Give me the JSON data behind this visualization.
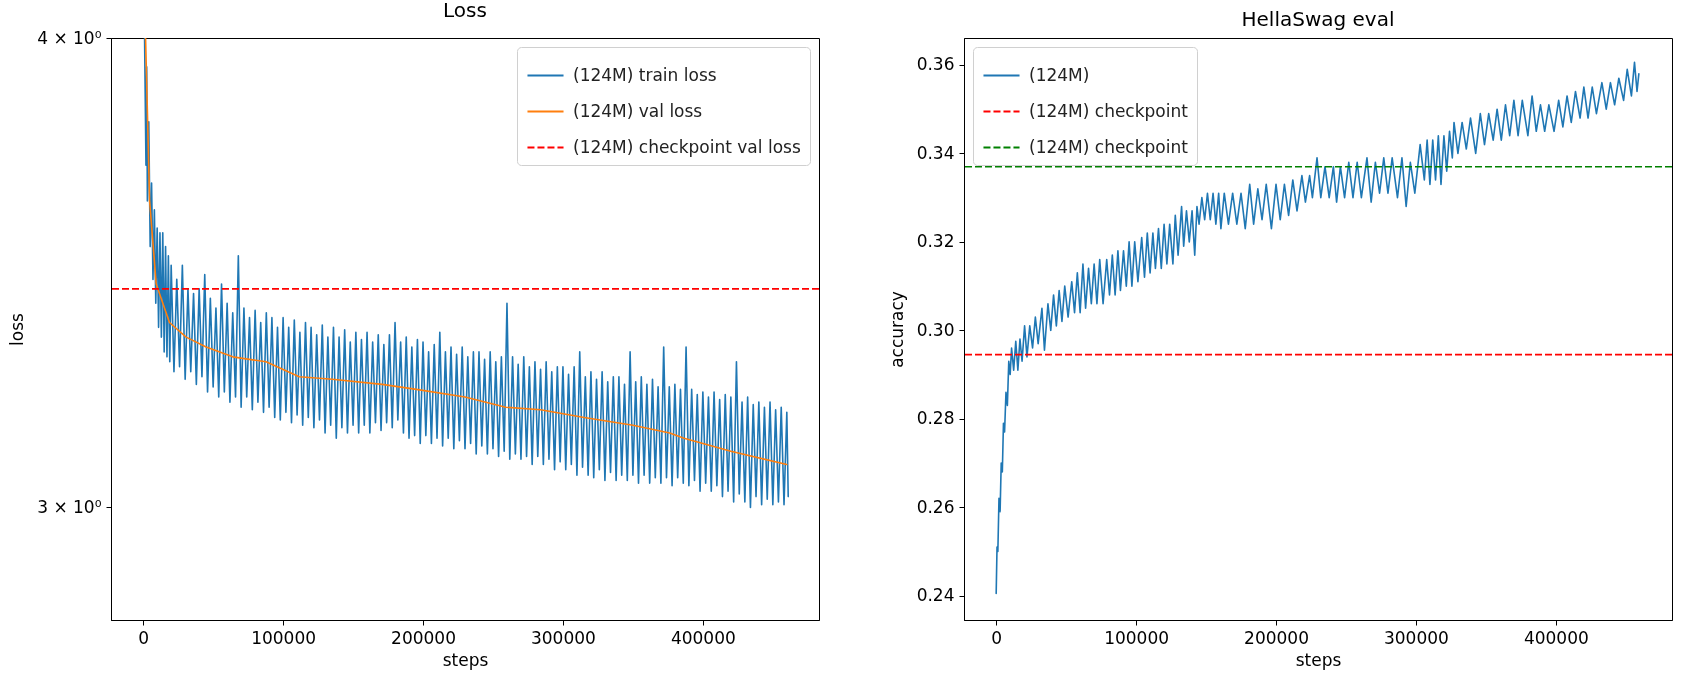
{
  "chart_data": [
    {
      "type": "line",
      "title": "Loss",
      "xlabel": "steps",
      "ylabel": "loss",
      "log": true,
      "legend": "top right",
      "xlim": [
        -23000,
        483000
      ],
      "xticks": [
        0,
        100000,
        200000,
        300000,
        400000
      ],
      "ylim": [
        2.8,
        4.0
      ],
      "yticks": [
        {
          "value": 3,
          "label": "3 × 10⁰"
        },
        {
          "value": 4,
          "label": "4 × 10⁰"
        }
      ],
      "series": [
        {
          "name": "(124M) train loss",
          "color": "#1f77b4",
          "line_style": "solid",
          "x": [
            1000,
            2000,
            2500,
            3000,
            4000,
            5000,
            6000,
            7000,
            8000,
            9000,
            10000,
            11000,
            12000,
            13000,
            14000,
            15000,
            16000,
            17000,
            18000,
            19000,
            20000,
            22000,
            24000,
            26000,
            28000,
            30000,
            32000,
            34000,
            36000,
            38000,
            40000,
            42000,
            44000,
            46000,
            48000,
            50000,
            52000,
            54000,
            56000,
            58000,
            60000,
            62000,
            64000,
            66000,
            68000,
            70000,
            72000,
            74000,
            76000,
            78000,
            80000,
            82000,
            84000,
            86000,
            88000,
            90000,
            92000,
            94000,
            96000,
            98000,
            100000,
            102000,
            104000,
            106000,
            108000,
            110000,
            112000,
            114000,
            116000,
            118000,
            120000,
            122000,
            124000,
            126000,
            128000,
            130000,
            132000,
            134000,
            136000,
            138000,
            140000,
            142000,
            144000,
            146000,
            148000,
            150000,
            152000,
            154000,
            156000,
            158000,
            160000,
            162000,
            164000,
            166000,
            168000,
            170000,
            172000,
            174000,
            176000,
            178000,
            180000,
            182000,
            184000,
            186000,
            188000,
            190000,
            192000,
            194000,
            196000,
            198000,
            200000,
            202000,
            204000,
            206000,
            208000,
            210000,
            212000,
            214000,
            216000,
            218000,
            220000,
            222000,
            224000,
            226000,
            228000,
            230000,
            232000,
            234000,
            236000,
            238000,
            240000,
            242000,
            244000,
            246000,
            248000,
            250000,
            252000,
            254000,
            256000,
            258000,
            260000,
            262000,
            264000,
            266000,
            268000,
            270000,
            272000,
            274000,
            276000,
            278000,
            280000,
            282000,
            284000,
            286000,
            288000,
            290000,
            292000,
            294000,
            296000,
            298000,
            300000,
            302000,
            304000,
            306000,
            308000,
            310000,
            312000,
            314000,
            316000,
            318000,
            320000,
            322000,
            324000,
            326000,
            328000,
            330000,
            332000,
            334000,
            336000,
            338000,
            340000,
            342000,
            344000,
            346000,
            348000,
            350000,
            352000,
            354000,
            356000,
            358000,
            360000,
            362000,
            364000,
            366000,
            368000,
            370000,
            372000,
            374000,
            376000,
            378000,
            380000,
            382000,
            384000,
            386000,
            388000,
            390000,
            392000,
            394000,
            396000,
            398000,
            400000,
            402000,
            404000,
            406000,
            408000,
            410000,
            412000,
            414000,
            416000,
            418000,
            420000,
            422000,
            424000,
            426000,
            428000,
            430000,
            432000,
            434000,
            436000,
            438000,
            440000,
            442000,
            444000,
            446000,
            448000,
            450000,
            452000,
            454000,
            456000,
            458000,
            460000,
            461000
          ],
          "values": [
            4.0,
            3.7,
            3.93,
            3.62,
            3.8,
            3.52,
            3.66,
            3.45,
            3.6,
            3.4,
            3.56,
            3.35,
            3.55,
            3.33,
            3.55,
            3.3,
            3.52,
            3.29,
            3.5,
            3.28,
            3.48,
            3.26,
            3.45,
            3.27,
            3.48,
            3.245,
            3.43,
            3.26,
            3.42,
            3.235,
            3.43,
            3.25,
            3.46,
            3.22,
            3.41,
            3.23,
            3.39,
            3.21,
            3.44,
            3.22,
            3.4,
            3.2,
            3.38,
            3.21,
            3.5,
            3.19,
            3.39,
            3.21,
            3.37,
            3.185,
            3.385,
            3.2,
            3.36,
            3.18,
            3.38,
            3.19,
            3.37,
            3.17,
            3.35,
            3.165,
            3.37,
            3.18,
            3.35,
            3.16,
            3.365,
            3.175,
            3.34,
            3.155,
            3.36,
            3.17,
            3.35,
            3.15,
            3.335,
            3.165,
            3.355,
            3.14,
            3.33,
            3.155,
            3.35,
            3.13,
            3.33,
            3.15,
            3.345,
            3.14,
            3.32,
            3.155,
            3.34,
            3.14,
            3.325,
            3.155,
            3.34,
            3.14,
            3.32,
            3.16,
            3.335,
            3.145,
            3.315,
            3.16,
            3.335,
            3.15,
            3.36,
            3.165,
            3.32,
            3.14,
            3.33,
            3.13,
            3.31,
            3.135,
            3.325,
            3.12,
            3.32,
            3.135,
            3.3,
            3.12,
            3.315,
            3.13,
            3.34,
            3.115,
            3.3,
            3.13,
            3.31,
            3.11,
            3.295,
            3.125,
            3.31,
            3.11,
            3.29,
            3.12,
            3.3,
            3.1,
            3.3,
            3.115,
            3.285,
            3.1,
            3.3,
            3.11,
            3.28,
            3.095,
            3.29,
            3.105,
            3.4,
            3.09,
            3.29,
            3.1,
            3.275,
            3.09,
            3.29,
            3.095,
            3.27,
            3.08,
            3.28,
            3.095,
            3.265,
            3.08,
            3.28,
            3.09,
            3.26,
            3.07,
            3.27,
            3.085,
            3.27,
            3.07,
            3.255,
            3.08,
            3.27,
            3.06,
            3.3,
            3.075,
            3.25,
            3.06,
            3.26,
            3.055,
            3.245,
            3.07,
            3.26,
            3.05,
            3.24,
            3.065,
            3.25,
            3.05,
            3.25,
            3.06,
            3.235,
            3.05,
            3.3,
            3.06,
            3.24,
            3.045,
            3.25,
            3.06,
            3.235,
            3.045,
            3.245,
            3.055,
            3.23,
            3.045,
            3.31,
            3.055,
            3.23,
            3.04,
            3.235,
            3.055,
            3.225,
            3.045,
            3.31,
            3.04,
            3.225,
            3.05,
            3.215,
            3.03,
            3.22,
            3.045,
            3.21,
            3.03,
            3.22,
            3.04,
            3.205,
            3.02,
            3.215,
            3.03,
            3.21,
            3.01,
            3.28,
            3.025,
            3.2,
            3.01,
            3.21,
            3.0,
            3.195,
            3.02,
            3.2,
            3.005,
            3.19,
            3.015,
            3.2,
            3.005,
            3.185,
            3.01,
            3.19,
            3.005,
            3.18,
            3.02
          ]
        },
        {
          "name": "(124M) val loss",
          "color": "#ff7f0e",
          "line_style": "solid",
          "x": [
            1700,
            4600,
            9300,
            18800,
            30700,
            45000,
            64000,
            87800,
            111500,
            135200,
            170800,
            195200,
            230000,
            259100,
            284000,
            315200,
            350000,
            376300,
            386500,
            420000,
            460000
          ],
          "values": [
            4.0,
            3.62,
            3.44,
            3.36,
            3.33,
            3.31,
            3.29,
            3.28,
            3.25,
            3.245,
            3.235,
            3.225,
            3.21,
            3.19,
            3.185,
            3.17,
            3.155,
            3.14,
            3.13,
            3.105,
            3.08
          ]
        }
      ],
      "ref_lines": [
        {
          "axis": "y",
          "value": 3.43,
          "label": "(124M) checkpoint val loss",
          "color": "#ff0000",
          "line_style": "dashed"
        }
      ]
    },
    {
      "type": "line",
      "title": "HellaSwag eval",
      "xlabel": "steps",
      "ylabel": "accuracy",
      "legend": "top left",
      "xlim": [
        -23000,
        483000
      ],
      "xticks": [
        0,
        100000,
        200000,
        300000,
        400000
      ],
      "ylim": [
        0.2345,
        0.3661
      ],
      "yticks": [
        0.24,
        0.26,
        0.28,
        {
          "value": 0.3,
          "label": "0.30"
        },
        0.32,
        0.34,
        0.36
      ],
      "series": [
        {
          "name": "(124M)",
          "color": "#1f77b4",
          "line_style": "solid",
          "x": [
            0,
            600,
            1200,
            2000,
            2800,
            3600,
            4400,
            5200,
            6000,
            7000,
            8000,
            9000,
            10000,
            11000,
            12500,
            14000,
            15500,
            17000,
            18500,
            20300,
            22000,
            24000,
            26000,
            28000,
            30000,
            32700,
            34500,
            37000,
            39000,
            41000,
            43000,
            45000,
            47000,
            49000,
            51400,
            54000,
            56000,
            58000,
            60000,
            62000,
            63900,
            66000,
            68000,
            70000,
            72000,
            74000,
            76400,
            79000,
            81000,
            83000,
            85000,
            87000,
            88800,
            91000,
            93000,
            95000,
            97000,
            99000,
            101300,
            104000,
            106000,
            108000,
            110000,
            112000,
            113800,
            116000,
            118000,
            120000,
            122000,
            124000,
            126300,
            128000,
            130000,
            132500,
            134000,
            136000,
            138000,
            140000,
            141900,
            143500,
            145000,
            147000,
            149000,
            151000,
            153000,
            155000,
            157000,
            159000,
            160600,
            163000,
            166000,
            169000,
            172000,
            175000,
            178000,
            181200,
            184000,
            187000,
            190000,
            193000,
            196700,
            200000,
            203000,
            206000,
            209000,
            212000,
            215000,
            218500,
            221000,
            224000,
            226000,
            229300,
            232000,
            235000,
            238000,
            241000,
            243300,
            246000,
            249000,
            252000,
            255000,
            258000,
            261000,
            265000,
            268000,
            271000,
            274000,
            277000,
            280000,
            283000,
            286800,
            290000,
            293000,
            296000,
            299200,
            303000,
            306000,
            308000,
            310000,
            312000,
            314000,
            316000,
            317900,
            320000,
            322000,
            324000,
            326000,
            327200,
            330000,
            333000,
            336000,
            339000,
            342700,
            346000,
            349000,
            352000,
            355200,
            358000,
            361000,
            364000,
            367000,
            370000,
            373000,
            376000,
            380000,
            383000,
            386000,
            389000,
            392000,
            395000,
            398700,
            402000,
            405000,
            408000,
            411000,
            414000,
            417300,
            420000,
            423000,
            426000,
            429000,
            432900,
            436000,
            439000,
            442000,
            445000,
            448400,
            451000,
            454000,
            456200,
            458000,
            459300
          ],
          "values": [
            0.2405,
            0.251,
            0.25,
            0.262,
            0.259,
            0.27,
            0.268,
            0.279,
            0.277,
            0.286,
            0.283,
            0.293,
            0.29,
            0.296,
            0.291,
            0.2975,
            0.291,
            0.298,
            0.293,
            0.301,
            0.294,
            0.301,
            0.296,
            0.303,
            0.297,
            0.305,
            0.2955,
            0.306,
            0.3,
            0.308,
            0.301,
            0.309,
            0.302,
            0.31,
            0.303,
            0.311,
            0.304,
            0.313,
            0.304,
            0.315,
            0.305,
            0.314,
            0.306,
            0.315,
            0.306,
            0.316,
            0.306,
            0.316,
            0.308,
            0.317,
            0.308,
            0.318,
            0.309,
            0.318,
            0.31,
            0.32,
            0.31,
            0.32,
            0.311,
            0.321,
            0.312,
            0.322,
            0.313,
            0.322,
            0.314,
            0.323,
            0.314,
            0.324,
            0.315,
            0.324,
            0.315,
            0.326,
            0.317,
            0.328,
            0.319,
            0.327,
            0.32,
            0.327,
            0.317,
            0.328,
            0.324,
            0.33,
            0.325,
            0.331,
            0.325,
            0.331,
            0.324,
            0.331,
            0.323,
            0.331,
            0.324,
            0.331,
            0.324,
            0.331,
            0.323,
            0.333,
            0.324,
            0.332,
            0.325,
            0.333,
            0.323,
            0.333,
            0.325,
            0.333,
            0.326,
            0.334,
            0.327,
            0.335,
            0.329,
            0.335,
            0.33,
            0.339,
            0.33,
            0.337,
            0.33,
            0.337,
            0.329,
            0.337,
            0.33,
            0.338,
            0.33,
            0.338,
            0.33,
            0.339,
            0.329,
            0.338,
            0.331,
            0.339,
            0.331,
            0.339,
            0.33,
            0.339,
            0.328,
            0.338,
            0.331,
            0.342,
            0.334,
            0.343,
            0.333,
            0.343,
            0.334,
            0.344,
            0.333,
            0.344,
            0.336,
            0.345,
            0.339,
            0.347,
            0.34,
            0.347,
            0.341,
            0.348,
            0.34,
            0.349,
            0.342,
            0.349,
            0.343,
            0.35,
            0.343,
            0.351,
            0.344,
            0.352,
            0.344,
            0.352,
            0.344,
            0.353,
            0.345,
            0.351,
            0.345,
            0.351,
            0.345,
            0.352,
            0.346,
            0.353,
            0.347,
            0.354,
            0.348,
            0.355,
            0.348,
            0.355,
            0.349,
            0.356,
            0.35,
            0.356,
            0.351,
            0.357,
            0.352,
            0.359,
            0.353,
            0.3606,
            0.354,
            0.358
          ]
        }
      ],
      "ref_lines": [
        {
          "axis": "y",
          "value": 0.2945,
          "label": "(124M) checkpoint",
          "color": "#ff0000",
          "line_style": "dashed"
        },
        {
          "axis": "y",
          "value": 0.337,
          "label": "(124M) checkpoint",
          "color": "#008000",
          "line_style": "dashed"
        }
      ]
    }
  ]
}
